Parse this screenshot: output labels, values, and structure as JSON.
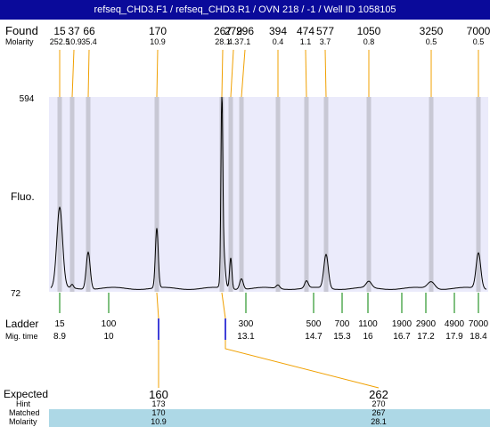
{
  "window_title": "refseq_CHD3.F1 / refseq_CHD3.R1 / OVN 218 / -1 / Well ID 1058105",
  "labels": {
    "found": "Found",
    "molarity": "Molarity",
    "fluo": "Fluo.",
    "ladder": "Ladder",
    "mig_time": "Mig. time",
    "expected": "Expected",
    "hint": "Hint",
    "matched": "Matched",
    "molarity2": "Molarity"
  },
  "axis": {
    "y_max": "594",
    "y_min": "72"
  },
  "found_peaks": [
    {
      "size": "15",
      "molarity": "252.5"
    },
    {
      "size": "37",
      "molarity": "10.9"
    },
    {
      "size": "66",
      "molarity": "35.4"
    },
    {
      "size": "170",
      "molarity": "10.9"
    },
    {
      "size": "267",
      "molarity": "28.1"
    },
    {
      "size": "279",
      "molarity": "4.3"
    },
    {
      "size": "296",
      "molarity": "7.1"
    },
    {
      "size": "394",
      "molarity": "0.4"
    },
    {
      "size": "474",
      "molarity": "1.1"
    },
    {
      "size": "577",
      "molarity": "3.7"
    },
    {
      "size": "1050",
      "molarity": "0.8"
    },
    {
      "size": "3250",
      "molarity": "0.5"
    },
    {
      "size": "7000",
      "molarity": "0.5"
    }
  ],
  "ladder": [
    {
      "size": "15",
      "time": "8.9"
    },
    {
      "size": "100",
      "time": "10"
    },
    {
      "size": "300",
      "time": "13.1"
    },
    {
      "size": "500",
      "time": "14.7"
    },
    {
      "size": "700",
      "time": "15.3"
    },
    {
      "size": "1100",
      "time": "16"
    },
    {
      "size": "1900",
      "time": "16.7"
    },
    {
      "size": "2900",
      "time": "17.2"
    },
    {
      "size": "4900",
      "time": "17.9"
    },
    {
      "size": "7000",
      "time": "18.4"
    }
  ],
  "expected": [
    {
      "expected": "160",
      "hint": "173",
      "matched": "170",
      "molarity": "10.9"
    },
    {
      "expected": "262",
      "hint": "270",
      "matched": "267",
      "molarity": "28.1"
    }
  ],
  "colors": {
    "title_bar": "#0a0a9a",
    "plot_bg": "#ebebfb",
    "peak_band": "#c8c8d4",
    "orange_line": "#f0a000",
    "green_tick": "#008000",
    "marker_blue": "#0000cc",
    "matched_row": "#add8e6"
  }
}
